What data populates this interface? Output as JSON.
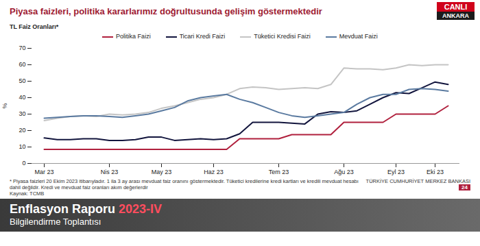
{
  "chart_data": {
    "type": "line",
    "title": "Piyasa faizleri, politika kararlarımız doğrultusunda gelişim göstermektedir",
    "subtitle": "TL Faiz Oranları*",
    "y_label": "%",
    "categories": [
      "Mar 23",
      null,
      null,
      null,
      null,
      "Nis 23",
      null,
      null,
      null,
      "May 23",
      null,
      null,
      null,
      "Haz 23",
      null,
      null,
      null,
      null,
      "Tem 23",
      null,
      null,
      null,
      null,
      "Ağu 23",
      null,
      null,
      null,
      "Eyl 23",
      null,
      null,
      "Eki 23",
      null
    ],
    "series": [
      {
        "name": "Politika Faizi",
        "color": "#b0203d",
        "values": [
          8.5,
          8.5,
          8.5,
          8.5,
          8.5,
          8.5,
          8.5,
          8.5,
          8.5,
          8.5,
          8.5,
          8.5,
          8.5,
          8.5,
          8.5,
          15,
          15,
          15,
          15,
          17.5,
          17.5,
          17.5,
          17.5,
          25,
          25,
          25,
          25,
          30,
          30,
          30,
          30,
          35
        ]
      },
      {
        "name": "Ticari Kredi Faizi",
        "color": "#12153d",
        "values": [
          15.5,
          14.5,
          14.5,
          15,
          15,
          14,
          14,
          14.5,
          16,
          16,
          14,
          14.5,
          15,
          14.5,
          15,
          18,
          25,
          25,
          25,
          24.5,
          24,
          30,
          31.5,
          31,
          32,
          36,
          40,
          43,
          42.5,
          46,
          49.5,
          48
        ]
      },
      {
        "name": "Tüketici Kredisi Faizi",
        "color": "#c4c4c4",
        "values": [
          26,
          27.5,
          28.5,
          29,
          28.5,
          30,
          29.5,
          30,
          31,
          33.5,
          35,
          37,
          39,
          40,
          42,
          45.5,
          46.5,
          46,
          45,
          45.5,
          46,
          45.5,
          48,
          58,
          57.5,
          57.5,
          57,
          58,
          60,
          59.5,
          60,
          60
        ]
      },
      {
        "name": "Mevduat Faizi",
        "color": "#5a7aa0",
        "values": [
          27.5,
          28,
          28.5,
          29,
          29,
          28.5,
          28,
          29,
          30,
          32,
          34,
          38,
          40,
          41,
          42,
          39,
          37,
          34,
          31,
          29,
          28,
          29,
          30,
          31,
          36,
          40,
          42,
          42,
          45,
          45.5,
          45,
          44
        ]
      }
    ],
    "ylim": [
      0,
      70
    ],
    "yticks": [
      0,
      10,
      20,
      30,
      40,
      50,
      60,
      70
    ],
    "grid": false,
    "legend": "top",
    "footnote": "* Piyasa faizleri 20 Ekim 2023 itibarıyladır. 1 ila 3 ay arası mevduat faiz oranını göstermektedir. Tüketici kredilerine kredi kartları ve kredili mevduat hesabı dahil değildir. Kredi ve mevduat faiz oranları akım değerlerdir",
    "source": "Kaynak: TCMB"
  },
  "slide": {
    "logo_text": "TÜRKİYE CUMHURİYET MERKEZ BANKASI",
    "page": "24"
  },
  "screen": {
    "live": "CANLI",
    "city": "ANKARA",
    "program": "Enflasyon Raporu",
    "edition": "2023-IV",
    "meeting": "Bilgilendirme Toplantısı"
  }
}
